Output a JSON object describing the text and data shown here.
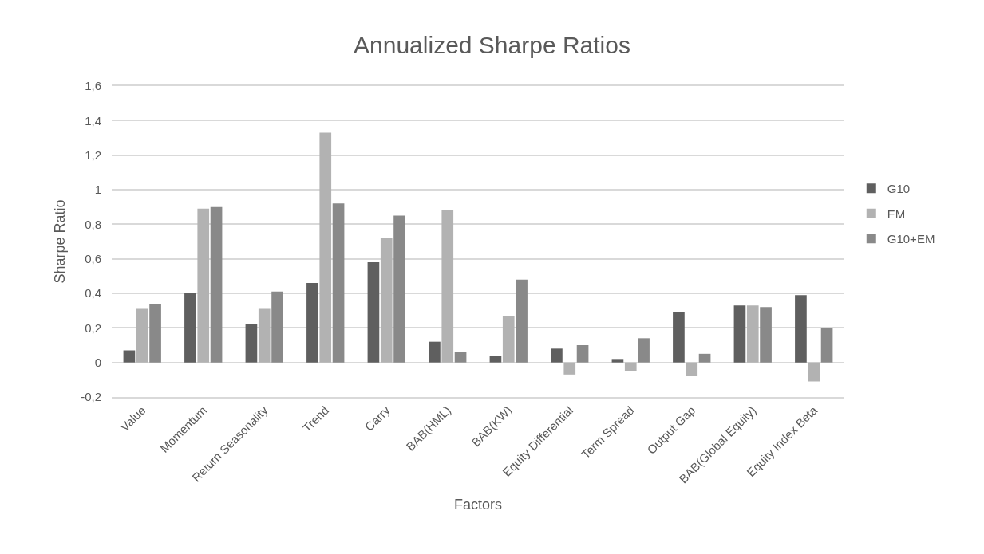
{
  "chart_data": {
    "type": "bar",
    "title": "Annualized Sharpe Ratios",
    "xlabel": "Factors",
    "ylabel": "Sharpe Ratio",
    "categories": [
      "Value",
      "Momentum",
      "Return Seasonality",
      "Trend",
      "Carry",
      "BAB(HML)",
      "BAB(KW)",
      "Equity Differential",
      "Term Spread",
      "Output Gap",
      "BAB(Global Equity)",
      "Equity Index Beta"
    ],
    "series": [
      {
        "name": "G10",
        "color": "#5f5f5f",
        "values": [
          0.07,
          0.4,
          0.22,
          0.46,
          0.58,
          0.12,
          0.04,
          0.08,
          0.02,
          0.29,
          0.33,
          0.39
        ]
      },
      {
        "name": "EM",
        "color": "#b2b2b2",
        "values": [
          0.31,
          0.89,
          0.31,
          1.33,
          0.72,
          0.88,
          0.27,
          -0.07,
          -0.05,
          -0.08,
          0.33,
          -0.11
        ]
      },
      {
        "name": "G10+EM",
        "color": "#898989",
        "values": [
          0.34,
          0.9,
          0.41,
          0.92,
          0.85,
          0.06,
          0.48,
          0.1,
          0.14,
          0.05,
          0.32,
          0.2
        ]
      }
    ],
    "ylim": [
      -0.2,
      1.6
    ],
    "yticks": [
      {
        "value": -0.2,
        "label": "-0,2"
      },
      0,
      {
        "value": 0.2,
        "label": "0,2"
      },
      {
        "value": 0.4,
        "label": "0,4"
      },
      {
        "value": 0.6,
        "label": "0,6"
      },
      {
        "value": 0.8,
        "label": "0,8"
      },
      1,
      {
        "value": 1.2,
        "label": "1,2"
      },
      {
        "value": 1.4,
        "label": "1,4"
      },
      {
        "value": 1.6,
        "label": "1,6"
      }
    ],
    "grid": "y",
    "legend": "right"
  }
}
